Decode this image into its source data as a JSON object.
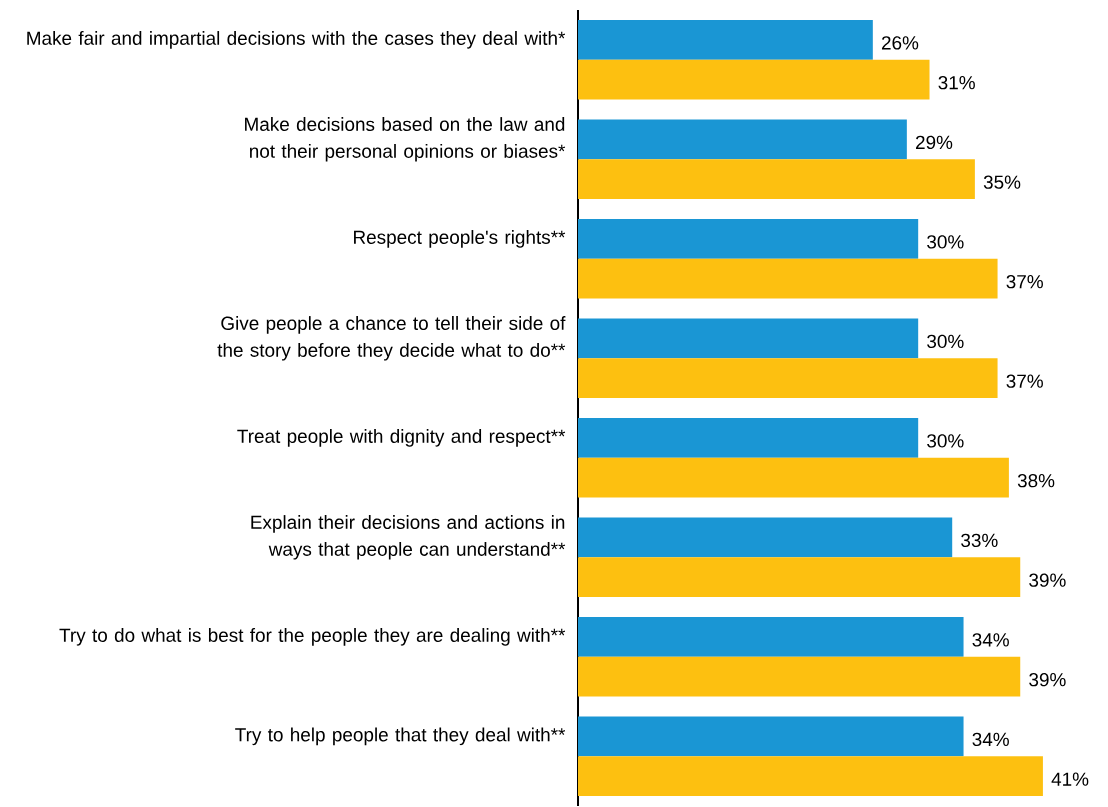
{
  "chart_data": {
    "type": "bar",
    "orientation": "horizontal",
    "categories": [
      "Make fair and impartial decisions with the cases they deal with*",
      "Make decisions based on the law and not their personal opinions or biases*",
      "Respect people's rights**",
      "Give people a chance to tell their side of the story before they decide what to do**",
      "Treat people with dignity and respect**",
      "Explain their decisions and actions in ways that people can understand**",
      "Try to do what is best for the people they are dealing with**",
      "Try to help people that they deal with**"
    ],
    "series": [
      {
        "color": "#1a96d4",
        "values": [
          26,
          29,
          30,
          30,
          30,
          33,
          34,
          34
        ],
        "value_labels": [
          "26%",
          "29%",
          "30%",
          "30%",
          "30%",
          "33%",
          "34%",
          "34%"
        ]
      },
      {
        "color": "#fdc010",
        "values": [
          31,
          35,
          37,
          37,
          38,
          39,
          39,
          41
        ],
        "value_labels": [
          "31%",
          "35%",
          "37%",
          "37%",
          "38%",
          "39%",
          "39%",
          "41%"
        ]
      }
    ]
  }
}
